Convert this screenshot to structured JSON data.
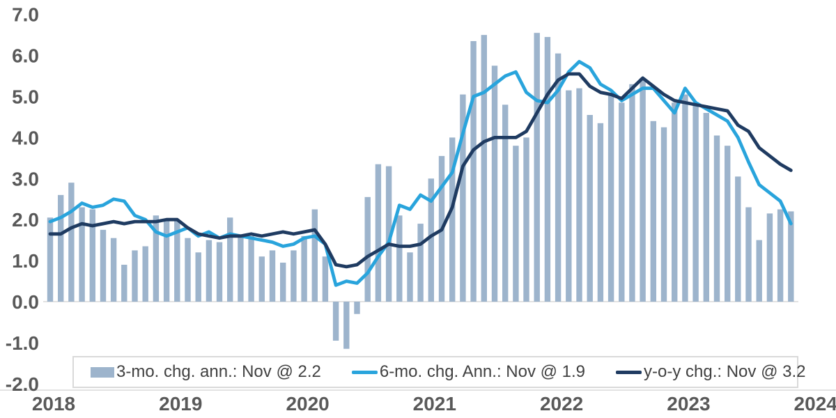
{
  "page": {
    "background": "#ffffff",
    "title": ""
  },
  "chart_data": {
    "type": "bar",
    "subtype": "bar-with-two-lines",
    "title": "",
    "xlabel": "",
    "ylabel": "",
    "frequency": "monthly",
    "grid": false,
    "legend_position": "bottom-inside",
    "ylim": [
      -2.0,
      7.0
    ],
    "axis_color": "#d9d9d9",
    "tick_label_color": "#595959",
    "legend_text_color": "#404040",
    "categories": [
      "2018-01",
      "2018-02",
      "2018-03",
      "2018-04",
      "2018-05",
      "2018-06",
      "2018-07",
      "2018-08",
      "2018-09",
      "2018-10",
      "2018-11",
      "2018-12",
      "2019-01",
      "2019-02",
      "2019-03",
      "2019-04",
      "2019-05",
      "2019-06",
      "2019-07",
      "2019-08",
      "2019-09",
      "2019-10",
      "2019-11",
      "2019-12",
      "2020-01",
      "2020-02",
      "2020-03",
      "2020-04",
      "2020-05",
      "2020-06",
      "2020-07",
      "2020-08",
      "2020-09",
      "2020-10",
      "2020-11",
      "2020-12",
      "2021-01",
      "2021-02",
      "2021-03",
      "2021-04",
      "2021-05",
      "2021-06",
      "2021-07",
      "2021-08",
      "2021-09",
      "2021-10",
      "2021-11",
      "2021-12",
      "2022-01",
      "2022-02",
      "2022-03",
      "2022-04",
      "2022-05",
      "2022-06",
      "2022-07",
      "2022-08",
      "2022-09",
      "2022-10",
      "2022-11",
      "2022-12",
      "2023-01",
      "2023-02",
      "2023-03",
      "2023-04",
      "2023-05",
      "2023-06",
      "2023-07",
      "2023-08",
      "2023-09",
      "2023-10",
      "2023-11"
    ],
    "series": [
      {
        "name": "3-mo. chg. ann.: Nov @ 2.2",
        "type": "bar",
        "color": "#9DB4CC",
        "latest_label": "Nov @ 2.2",
        "values": [
          2.05,
          2.6,
          2.9,
          2.3,
          2.25,
          1.75,
          1.55,
          0.9,
          1.25,
          1.35,
          2.1,
          2.0,
          2.0,
          1.55,
          1.2,
          1.5,
          1.45,
          2.05,
          1.6,
          1.6,
          1.1,
          1.25,
          0.95,
          1.25,
          1.6,
          2.25,
          1.1,
          -0.95,
          -1.15,
          -0.3,
          2.55,
          3.35,
          3.3,
          2.1,
          1.2,
          1.9,
          3.0,
          3.55,
          4.0,
          5.05,
          6.35,
          6.5,
          5.75,
          4.8,
          3.8,
          4.0,
          6.55,
          6.45,
          6.05,
          5.15,
          5.2,
          4.55,
          4.35,
          5.05,
          4.85,
          5.3,
          5.45,
          4.4,
          4.25,
          4.85,
          5.05,
          4.85,
          4.6,
          4.05,
          3.8,
          3.05,
          2.3,
          1.5,
          2.15,
          2.25,
          2.2
        ]
      },
      {
        "name": "6-mo. chg. Ann.: Nov @ 1.9",
        "type": "line",
        "color": "#29A4DC",
        "latest_label": "Nov @ 1.9",
        "values": [
          1.95,
          2.05,
          2.2,
          2.4,
          2.3,
          2.35,
          2.5,
          2.45,
          2.1,
          2.0,
          1.7,
          1.6,
          1.7,
          1.8,
          1.6,
          1.7,
          1.55,
          1.65,
          1.6,
          1.55,
          1.5,
          1.45,
          1.35,
          1.4,
          1.55,
          1.6,
          1.4,
          0.4,
          0.5,
          0.45,
          0.7,
          1.1,
          1.45,
          2.35,
          2.25,
          2.6,
          2.45,
          2.8,
          3.15,
          4.1,
          5.0,
          5.1,
          5.3,
          5.5,
          5.6,
          5.1,
          4.9,
          4.85,
          5.15,
          5.6,
          5.85,
          5.7,
          5.3,
          5.15,
          4.9,
          5.05,
          5.2,
          5.2,
          4.9,
          4.6,
          5.2,
          4.85,
          4.7,
          4.55,
          4.4,
          4.0,
          3.4,
          2.85,
          2.65,
          2.45,
          1.9
        ]
      },
      {
        "name": "y-o-y chg.: Nov @ 3.2",
        "type": "line",
        "color": "#1F3B61",
        "latest_label": "Nov @ 3.2",
        "values": [
          1.65,
          1.65,
          1.8,
          1.9,
          1.85,
          1.9,
          1.95,
          1.9,
          1.95,
          1.95,
          1.95,
          2.0,
          2.0,
          1.8,
          1.65,
          1.6,
          1.55,
          1.6,
          1.6,
          1.65,
          1.6,
          1.65,
          1.7,
          1.65,
          1.7,
          1.75,
          1.4,
          0.9,
          0.85,
          0.9,
          1.1,
          1.25,
          1.4,
          1.35,
          1.35,
          1.4,
          1.6,
          1.75,
          2.3,
          3.3,
          3.7,
          3.9,
          4.0,
          4.0,
          4.0,
          4.15,
          4.6,
          5.05,
          5.4,
          5.55,
          5.55,
          5.25,
          5.1,
          5.05,
          4.95,
          5.2,
          5.45,
          5.25,
          5.05,
          4.9,
          4.85,
          4.8,
          4.75,
          4.7,
          4.65,
          4.3,
          4.15,
          3.75,
          3.55,
          3.35,
          3.2
        ]
      }
    ],
    "yticks": [
      {
        "label": "7.0",
        "value": 7
      },
      {
        "label": "6.0",
        "value": 6
      },
      {
        "label": "5.0",
        "value": 5
      },
      {
        "label": "4.0",
        "value": 4
      },
      {
        "label": "3.0",
        "value": 3
      },
      {
        "label": "2.0",
        "value": 2
      },
      {
        "label": "1.0",
        "value": 1
      },
      {
        "label": "0.0",
        "value": 0
      },
      {
        "label": "-1.0",
        "value": -1
      },
      {
        "label": "-2.0",
        "value": -2
      }
    ],
    "xticks": [
      {
        "label": "2018",
        "month_index": 0
      },
      {
        "label": "2019",
        "month_index": 12
      },
      {
        "label": "2020",
        "month_index": 24
      },
      {
        "label": "2021",
        "month_index": 36
      },
      {
        "label": "2022",
        "month_index": 48
      },
      {
        "label": "2023",
        "month_index": 60
      },
      {
        "label": "2024",
        "month_index": 72
      }
    ]
  }
}
